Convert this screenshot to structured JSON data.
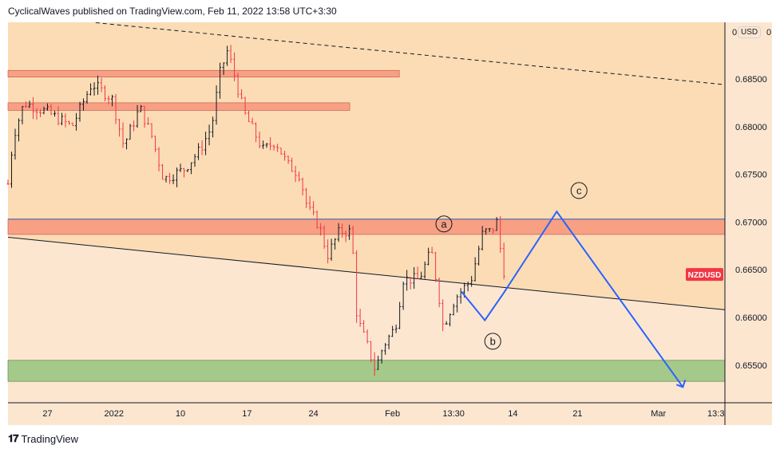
{
  "header": {
    "title": "CyclicalWaves published on TradingView.com, Feb 11, 2022 13:58 UTC+3:30"
  },
  "footer": {
    "brand": "TradingView",
    "logo": "TV"
  },
  "price_axis": {
    "currency_button": "USD",
    "top_label": "0"
  },
  "colors": {
    "bg_upper": "#fbdcb5",
    "bg_lower": "#fce6d0",
    "up": "#131722",
    "down": "#f23645",
    "resistance": "#f7a084",
    "support": "#a5c98a",
    "wave": "#2962ff",
    "symbol_bg": "#f23645"
  },
  "chart_data": {
    "type": "candlestick",
    "symbol": "NZDUSD",
    "y_ticks": [
      "0.68500",
      "0.68000",
      "0.67500",
      "0.67000",
      "0.66500",
      "0.66000",
      "0.65500"
    ],
    "y_tick_values": [
      0.685,
      0.68,
      0.675,
      0.67,
      0.665,
      0.66,
      0.655
    ],
    "ylim": [
      0.6522,
      0.6915
    ],
    "x_ticks": [
      {
        "label": "27",
        "bar": 11
      },
      {
        "label": "2022",
        "bar": 29.5
      },
      {
        "label": "10",
        "bar": 48
      },
      {
        "label": "17",
        "bar": 66.5
      },
      {
        "label": "24",
        "bar": 85
      },
      {
        "label": "Feb",
        "bar": 107
      },
      {
        "label": "13:30",
        "bar": 124
      },
      {
        "label": "14",
        "bar": 140.5
      },
      {
        "label": "21",
        "bar": 158.5
      },
      {
        "label": "Mar",
        "bar": 181
      },
      {
        "label": "13:3",
        "bar": 197
      }
    ],
    "bars_total": 199.5,
    "price_path": [
      [
        0,
        0.674
      ],
      [
        1.5,
        0.679
      ],
      [
        4.5,
        0.6825
      ],
      [
        11,
        0.6815
      ],
      [
        17.8,
        0.68
      ],
      [
        23.3,
        0.6845
      ],
      [
        28.9,
        0.683
      ],
      [
        32.2,
        0.678
      ],
      [
        36.7,
        0.682
      ],
      [
        40,
        0.679
      ],
      [
        43.3,
        0.6745
      ],
      [
        48.9,
        0.6755
      ],
      [
        53.3,
        0.6775
      ],
      [
        56.7,
        0.68
      ],
      [
        58.9,
        0.6855
      ],
      [
        61.1,
        0.688
      ],
      [
        63.3,
        0.685
      ],
      [
        65.6,
        0.6815
      ],
      [
        71.1,
        0.6775
      ],
      [
        74.4,
        0.6785
      ],
      [
        77.8,
        0.676
      ],
      [
        81.1,
        0.675
      ],
      [
        83.3,
        0.6715
      ],
      [
        86.7,
        0.6695
      ],
      [
        88.9,
        0.6665
      ],
      [
        92.2,
        0.669
      ],
      [
        95.6,
        0.669
      ],
      [
        97.1,
        0.66
      ],
      [
        100,
        0.657
      ],
      [
        102.2,
        0.6545
      ],
      [
        104.4,
        0.657
      ],
      [
        107.8,
        0.659
      ],
      [
        110,
        0.664
      ],
      [
        114.4,
        0.664
      ],
      [
        117.8,
        0.667
      ],
      [
        120,
        0.662
      ],
      [
        121.1,
        0.659
      ],
      [
        124.4,
        0.662
      ],
      [
        128.9,
        0.664
      ],
      [
        132.2,
        0.669
      ],
      [
        134.4,
        0.669
      ],
      [
        136,
        0.67
      ],
      [
        137.8,
        0.665
      ],
      [
        138.9,
        0.6645
      ]
    ],
    "last_price_label": "NZDUSD",
    "zones": [
      {
        "type": "resistance",
        "from": 0.6859,
        "to": 0.6852,
        "bar_end": 108.9
      },
      {
        "type": "resistance",
        "from": 0.6825,
        "to": 0.6817,
        "bar_end": 95.1
      },
      {
        "type": "resistance",
        "from": 0.6703,
        "to": 0.6687,
        "bar_end": 199.5
      },
      {
        "type": "support",
        "from": 0.6555,
        "to": 0.6533,
        "bar_end": 199.5
      }
    ],
    "trendlines": [
      {
        "style": "dashed",
        "points": [
          [
            24.4,
            0.6909
          ],
          [
            199.5,
            0.6844
          ]
        ]
      },
      {
        "style": "solid",
        "points": [
          [
            0,
            0.6684
          ],
          [
            199.5,
            0.6608
          ]
        ]
      }
    ],
    "wave_projection": [
      [
        126.2,
        0.6627
      ],
      [
        132.7,
        0.6597
      ],
      [
        138,
        0.6626
      ],
      [
        152.7,
        0.6711
      ],
      [
        187.8,
        0.6527
      ]
    ],
    "wave_labels": [
      {
        "label": "a",
        "bar": 121.3,
        "price": 0.6698
      },
      {
        "label": "b",
        "bar": 134.9,
        "price": 0.6575
      },
      {
        "label": "c",
        "bar": 158.9,
        "price": 0.6733
      }
    ]
  }
}
